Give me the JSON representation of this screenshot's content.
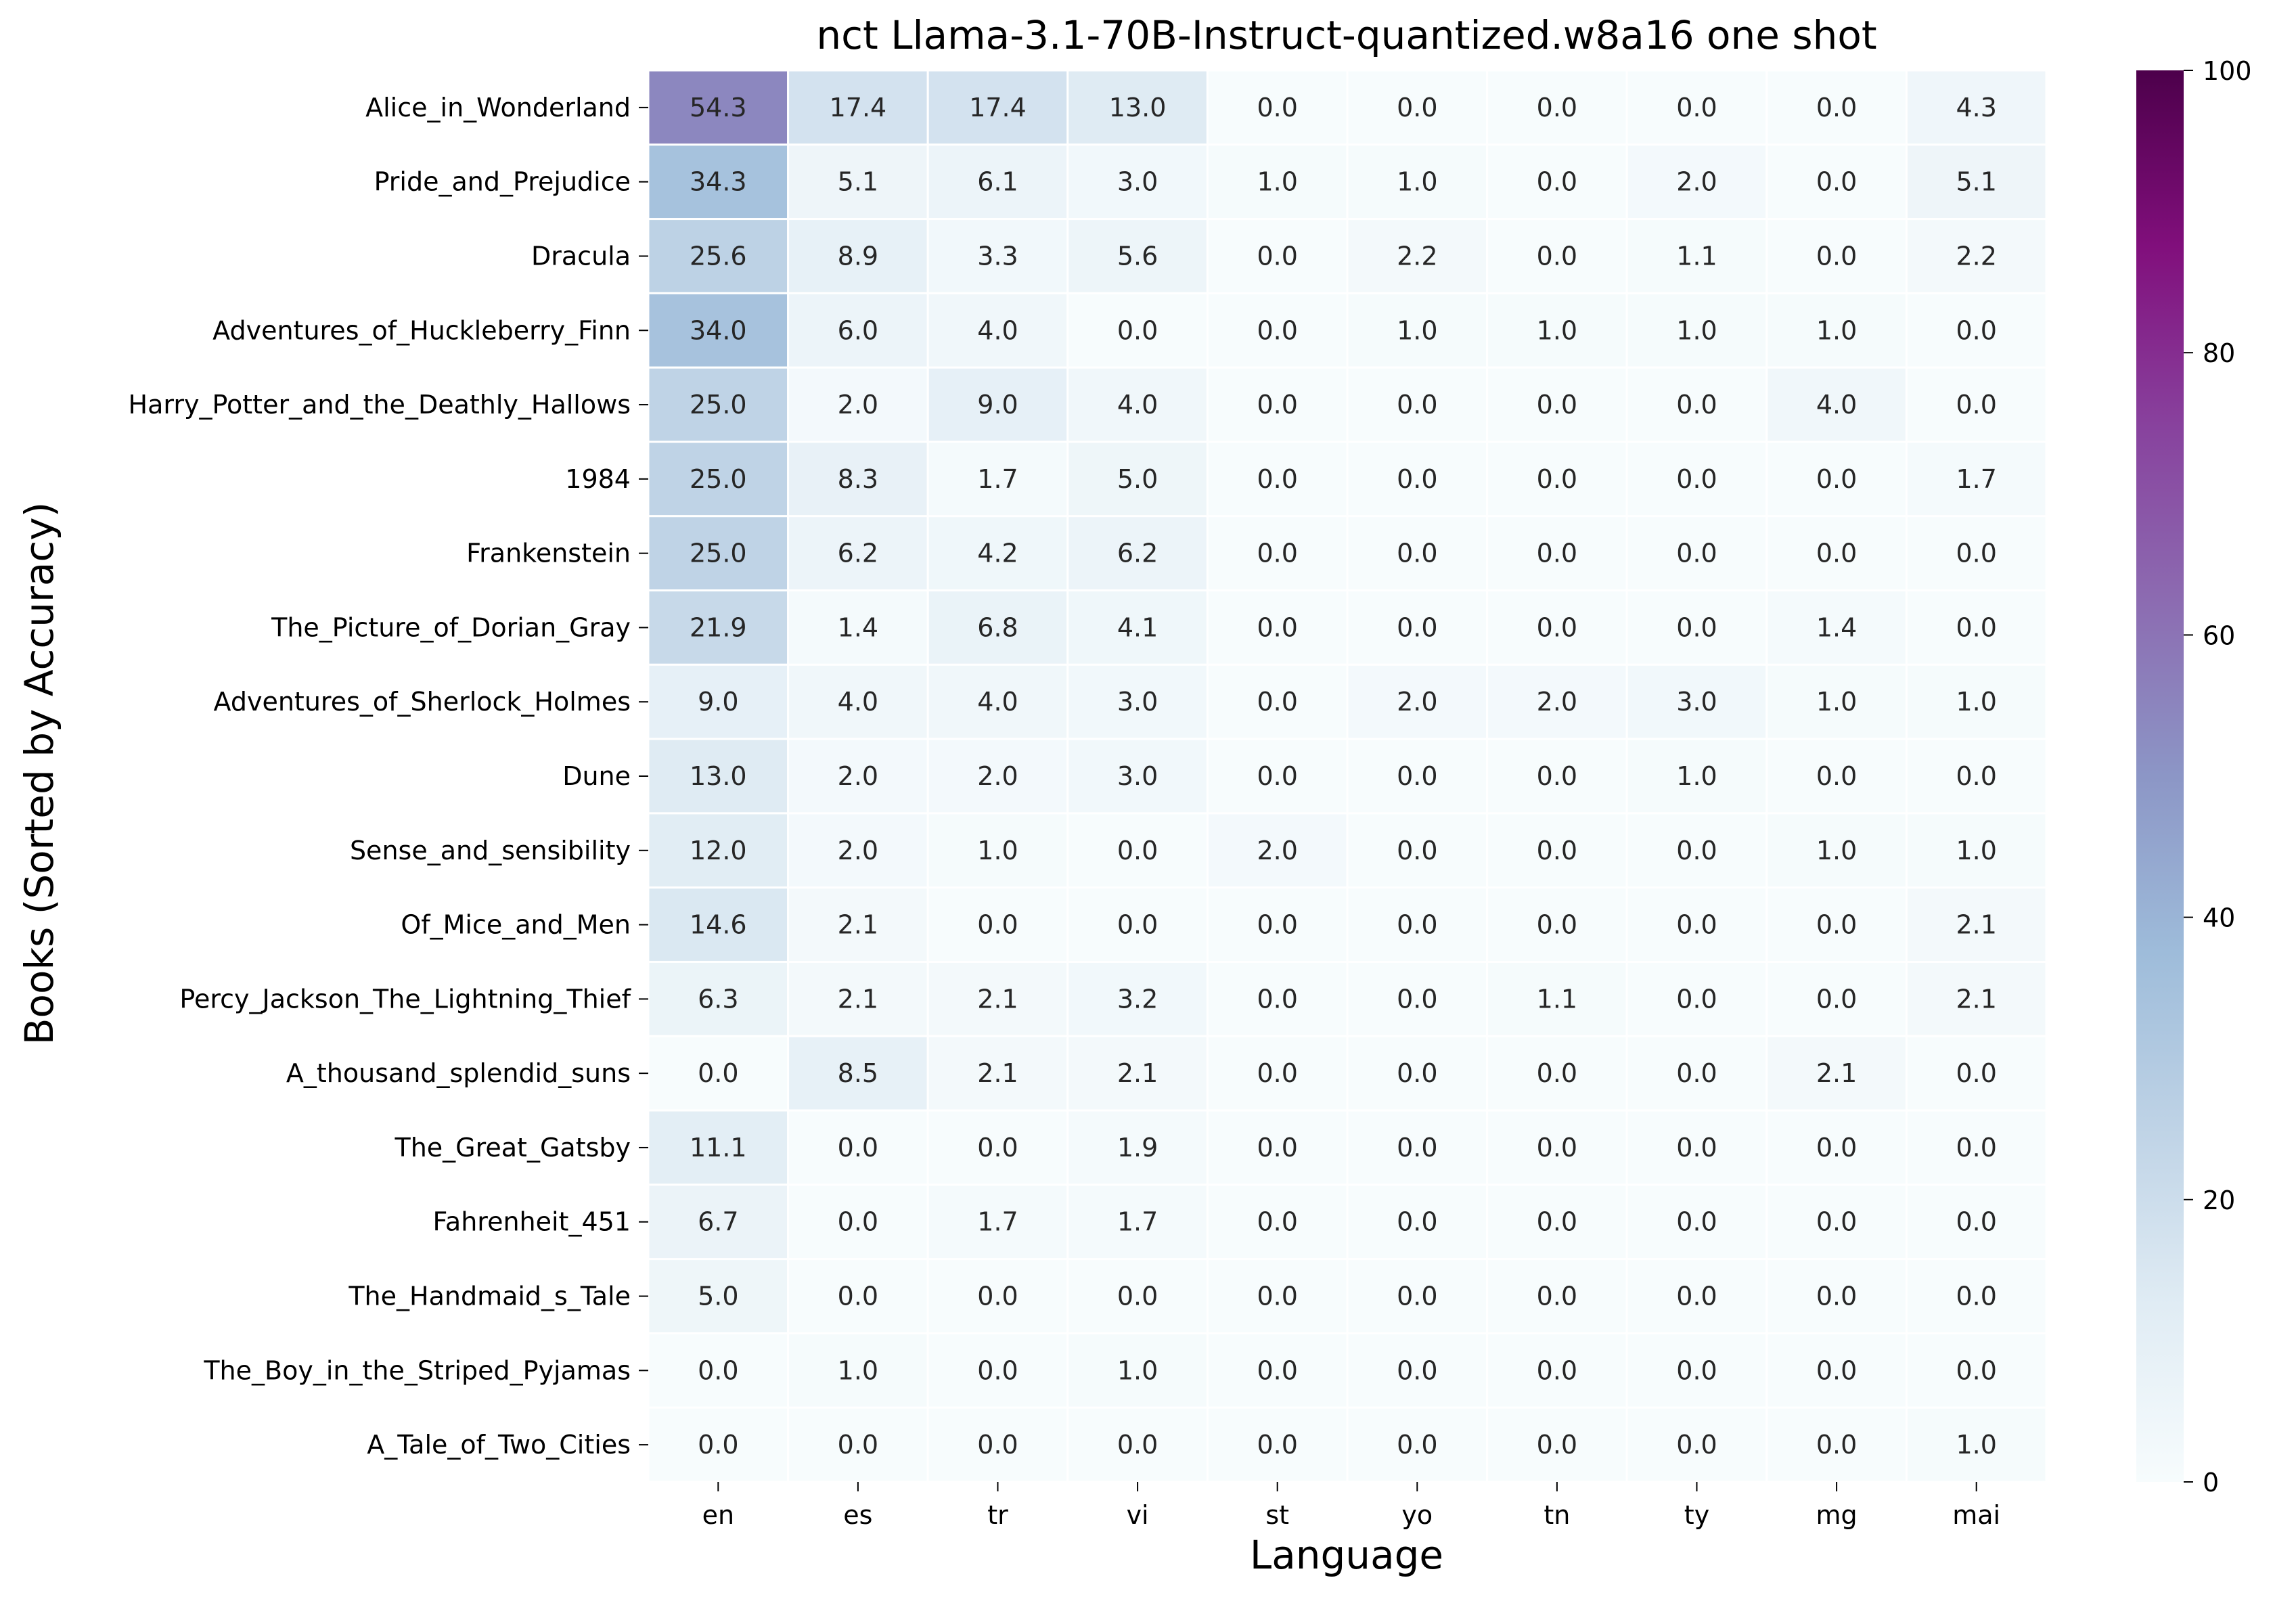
{
  "chart_data": {
    "type": "heatmap",
    "title": "nct Llama-3.1-70B-Instruct-quantized.w8a16 one shot",
    "xlabel": "Language",
    "ylabel": "Books (Sorted by Accuracy)",
    "columns": [
      "en",
      "es",
      "tr",
      "vi",
      "st",
      "yo",
      "tn",
      "ty",
      "mg",
      "mai"
    ],
    "rows": [
      "Alice_in_Wonderland",
      "Pride_and_Prejudice",
      "Dracula",
      "Adventures_of_Huckleberry_Finn",
      "Harry_Potter_and_the_Deathly_Hallows",
      "1984",
      "Frankenstein",
      "The_Picture_of_Dorian_Gray",
      "Adventures_of_Sherlock_Holmes",
      "Dune",
      "Sense_and_sensibility",
      "Of_Mice_and_Men",
      "Percy_Jackson_The_Lightning_Thief",
      "A_thousand_splendid_suns",
      "The_Great_Gatsby",
      "Fahrenheit_451",
      "The_Handmaid_s_Tale",
      "The_Boy_in_the_Striped_Pyjamas",
      "A_Tale_of_Two_Cities"
    ],
    "values": [
      [
        "54.3",
        "17.4",
        "17.4",
        "13.0",
        "0.0",
        "0.0",
        "0.0",
        "0.0",
        "0.0",
        "4.3"
      ],
      [
        "34.3",
        "5.1",
        "6.1",
        "3.0",
        "1.0",
        "1.0",
        "0.0",
        "2.0",
        "0.0",
        "5.1"
      ],
      [
        "25.6",
        "8.9",
        "3.3",
        "5.6",
        "0.0",
        "2.2",
        "0.0",
        "1.1",
        "0.0",
        "2.2"
      ],
      [
        "34.0",
        "6.0",
        "4.0",
        "0.0",
        "0.0",
        "1.0",
        "1.0",
        "1.0",
        "1.0",
        "0.0"
      ],
      [
        "25.0",
        "2.0",
        "9.0",
        "4.0",
        "0.0",
        "0.0",
        "0.0",
        "0.0",
        "4.0",
        "0.0"
      ],
      [
        "25.0",
        "8.3",
        "1.7",
        "5.0",
        "0.0",
        "0.0",
        "0.0",
        "0.0",
        "0.0",
        "1.7"
      ],
      [
        "25.0",
        "6.2",
        "4.2",
        "6.2",
        "0.0",
        "0.0",
        "0.0",
        "0.0",
        "0.0",
        "0.0"
      ],
      [
        "21.9",
        "1.4",
        "6.8",
        "4.1",
        "0.0",
        "0.0",
        "0.0",
        "0.0",
        "1.4",
        "0.0"
      ],
      [
        "9.0",
        "4.0",
        "4.0",
        "3.0",
        "0.0",
        "2.0",
        "2.0",
        "3.0",
        "1.0",
        "1.0"
      ],
      [
        "13.0",
        "2.0",
        "2.0",
        "3.0",
        "0.0",
        "0.0",
        "0.0",
        "1.0",
        "0.0",
        "0.0"
      ],
      [
        "12.0",
        "2.0",
        "1.0",
        "0.0",
        "2.0",
        "0.0",
        "0.0",
        "0.0",
        "1.0",
        "1.0"
      ],
      [
        "14.6",
        "2.1",
        "0.0",
        "0.0",
        "0.0",
        "0.0",
        "0.0",
        "0.0",
        "0.0",
        "2.1"
      ],
      [
        "6.3",
        "2.1",
        "2.1",
        "3.2",
        "0.0",
        "0.0",
        "1.1",
        "0.0",
        "0.0",
        "2.1"
      ],
      [
        "0.0",
        "8.5",
        "2.1",
        "2.1",
        "0.0",
        "0.0",
        "0.0",
        "0.0",
        "2.1",
        "0.0"
      ],
      [
        "11.1",
        "0.0",
        "0.0",
        "1.9",
        "0.0",
        "0.0",
        "0.0",
        "0.0",
        "0.0",
        "0.0"
      ],
      [
        "6.7",
        "0.0",
        "1.7",
        "1.7",
        "0.0",
        "0.0",
        "0.0",
        "0.0",
        "0.0",
        "0.0"
      ],
      [
        "5.0",
        "0.0",
        "0.0",
        "0.0",
        "0.0",
        "0.0",
        "0.0",
        "0.0",
        "0.0",
        "0.0"
      ],
      [
        "0.0",
        "1.0",
        "0.0",
        "1.0",
        "0.0",
        "0.0",
        "0.0",
        "0.0",
        "0.0",
        "0.0"
      ],
      [
        "0.0",
        "0.0",
        "0.0",
        "0.0",
        "0.0",
        "0.0",
        "0.0",
        "0.0",
        "0.0",
        "1.0"
      ]
    ],
    "colorbar": {
      "range": [
        0,
        100
      ],
      "ticks": [
        "0",
        "20",
        "40",
        "60",
        "80",
        "100"
      ],
      "colormap": "BuPu",
      "stops": [
        "#f7fcfd",
        "#e0ecf4",
        "#bfd3e6",
        "#9ebcda",
        "#8c96c6",
        "#8c6bb1",
        "#88419d",
        "#810f7c",
        "#4d004b"
      ]
    },
    "grid": false
  }
}
